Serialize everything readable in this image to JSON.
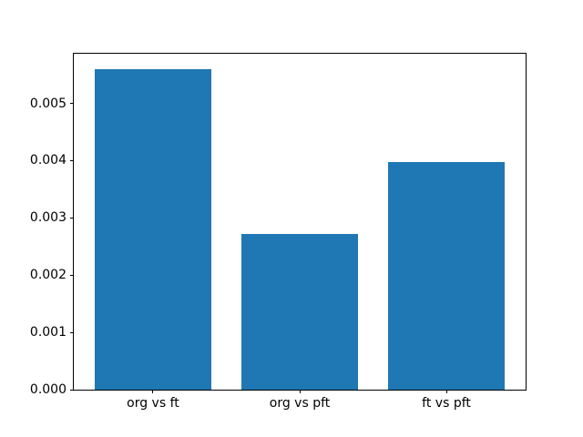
{
  "chart_data": {
    "type": "bar",
    "title": "",
    "xlabel": "",
    "ylabel": "",
    "categories": [
      "org vs ft",
      "org vs pft",
      "ft vs pft"
    ],
    "values": [
      0.00559,
      0.00272,
      0.00397
    ],
    "bar_color": "#1f77b4",
    "ylim": [
      0,
      0.005868
    ],
    "yticks": [
      0,
      0.001,
      0.002,
      0.003,
      0.004,
      0.005
    ],
    "ytick_labels": [
      "0.000",
      "0.001",
      "0.002",
      "0.003",
      "0.004",
      "0.005"
    ],
    "grid": false,
    "legend": null,
    "background_color": "#ffffff",
    "spine_color": "#000000"
  }
}
